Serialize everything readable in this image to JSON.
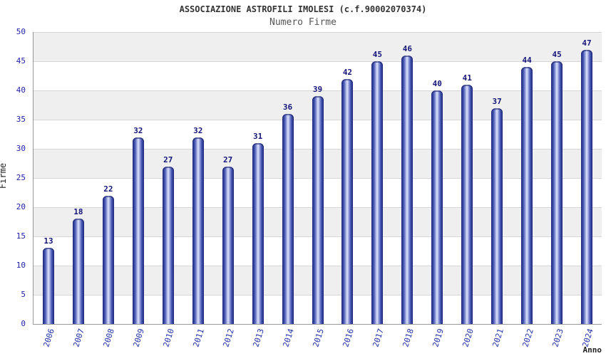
{
  "header": {
    "title": "ASSOCIAZIONE ASTROFILI IMOLESI (c.f.90002070374)",
    "subtitle": "Numero Firme"
  },
  "chart_data": {
    "type": "bar",
    "title": "ASSOCIAZIONE ASTROFILI IMOLESI (c.f.90002070374)",
    "subtitle": "Numero Firme",
    "xlabel": "Anno",
    "ylabel": "Firme",
    "categories": [
      "2006",
      "2007",
      "2008",
      "2009",
      "2010",
      "2011",
      "2012",
      "2013",
      "2014",
      "2015",
      "2016",
      "2017",
      "2018",
      "2019",
      "2020",
      "2021",
      "2022",
      "2023",
      "2024"
    ],
    "values": [
      13,
      18,
      22,
      32,
      27,
      32,
      27,
      31,
      36,
      39,
      42,
      45,
      46,
      40,
      41,
      37,
      44,
      45,
      47
    ],
    "ylim": [
      0,
      50
    ],
    "ytick_step": 5,
    "grid": "alternating-horizontal-bands",
    "legend": "none",
    "colors": {
      "bar_edge": "#1b2577",
      "bar_mid": "#4a5ab8",
      "bar_highlight": "#dfe4fb",
      "value_label": "#15157a",
      "axis_tick_label": "#2222aa",
      "band_shade": "#efefef",
      "band_plain": "#ffffff",
      "gridline": "#d6d6d6",
      "title_text": "#333333",
      "subtitle_text": "#555555"
    }
  }
}
